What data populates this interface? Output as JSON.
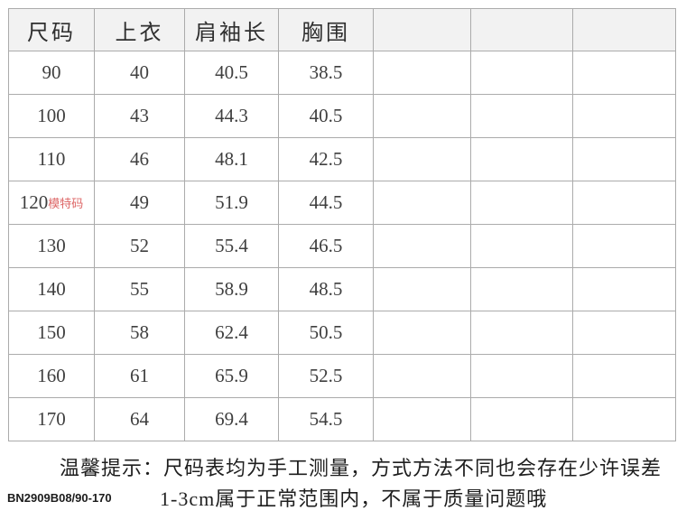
{
  "chart_data": {
    "type": "table",
    "columns": [
      "尺码",
      "上衣",
      "肩袖长",
      "胸围",
      "",
      "",
      ""
    ],
    "rows": [
      [
        "90",
        "40",
        "40.5",
        "38.5",
        "",
        "",
        ""
      ],
      [
        "100",
        "43",
        "44.3",
        "40.5",
        "",
        "",
        ""
      ],
      [
        "110",
        "46",
        "48.1",
        "42.5",
        "",
        "",
        ""
      ],
      [
        "120",
        "49",
        "51.9",
        "44.5",
        "",
        "",
        ""
      ],
      [
        "130",
        "52",
        "55.4",
        "46.5",
        "",
        "",
        ""
      ],
      [
        "140",
        "55",
        "58.9",
        "48.5",
        "",
        "",
        ""
      ],
      [
        "150",
        "58",
        "62.4",
        "50.5",
        "",
        "",
        ""
      ],
      [
        "160",
        "61",
        "65.9",
        "52.5",
        "",
        "",
        ""
      ],
      [
        "170",
        "64",
        "69.4",
        "54.5",
        "",
        "",
        ""
      ]
    ],
    "annotations": [
      {
        "row": "120",
        "label": "模特码",
        "color": "#dd6666"
      }
    ],
    "layout_hints": {
      "header_background": "#f2f2f2",
      "border_color": "#ababab",
      "empty_trailing_columns": 3
    }
  },
  "model_tag": {
    "text": "模特码",
    "color": "#dd6666"
  },
  "notice": {
    "line1": "温馨提示：尺码表均为手工测量，方式方法不同也会存在少许误差",
    "line2": "1-3cm属于正常范围内，不属于质量问题哦"
  },
  "product_code": "BN2909B08/90-170"
}
